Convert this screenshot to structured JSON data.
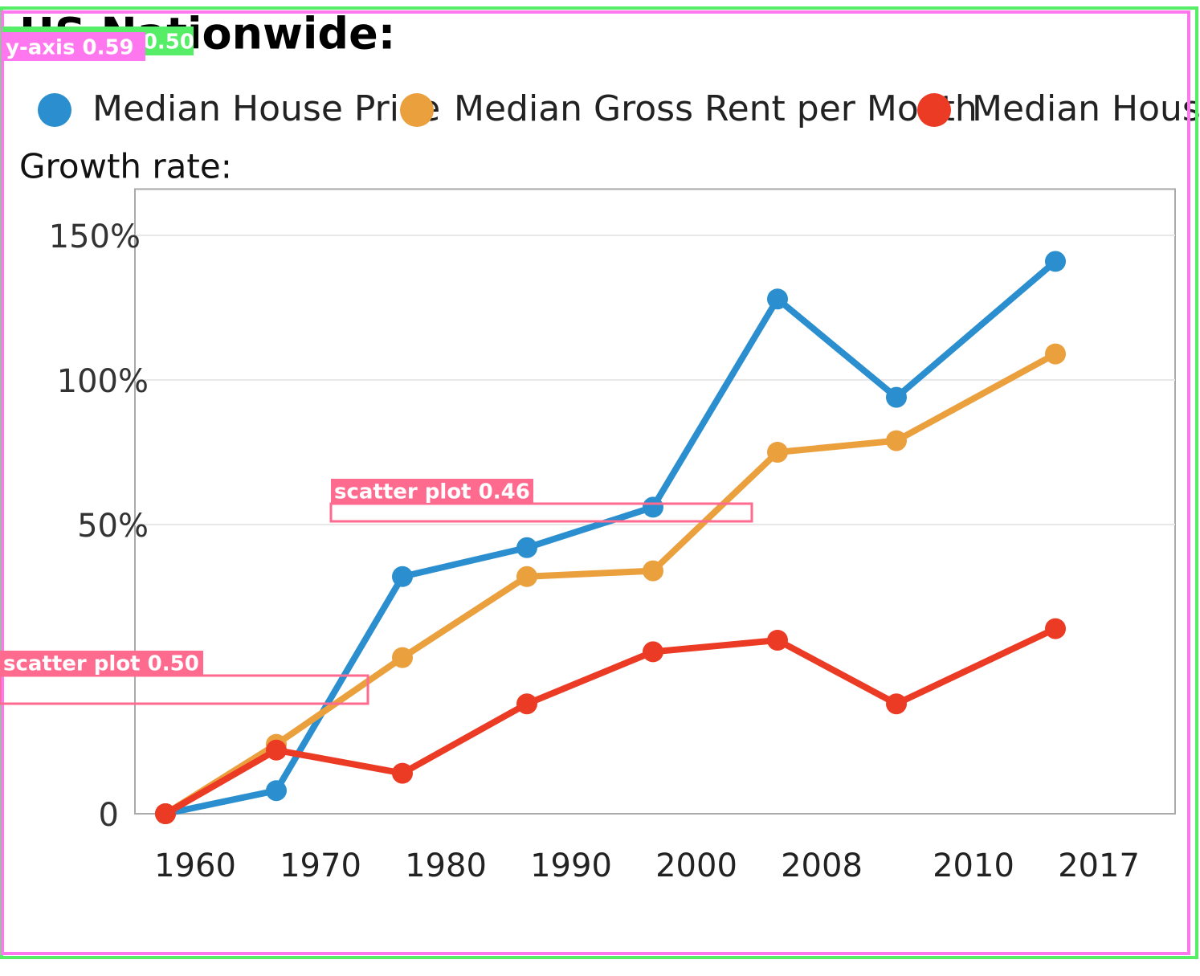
{
  "chart_data": {
    "type": "line",
    "title": "US Nationwide:",
    "y_label": "Growth rate:",
    "categories": [
      "1960",
      "1970",
      "1980",
      "1990",
      "2000",
      "2008",
      "2010",
      "2017"
    ],
    "series": [
      {
        "name": "Median House Price",
        "color": "#2b8fcf",
        "values": [
          0,
          4,
          41,
          46,
          56,
          128,
          94,
          141
        ]
      },
      {
        "name": "Median Gross Rent per Month",
        "color": "#eba03e",
        "values": [
          0,
          12,
          27,
          41,
          42,
          75,
          79,
          109
        ]
      },
      {
        "name": "Median Hous",
        "color": "#ec3b24",
        "values": [
          0,
          11,
          7,
          19,
          28,
          30,
          19,
          32
        ]
      }
    ],
    "ylim": [
      0,
      166
    ],
    "yticks": [
      0,
      {
        "value": 50,
        "label": "50%"
      },
      {
        "value": 100,
        "label": "100%"
      },
      {
        "value": 150,
        "label": "150%"
      }
    ],
    "grid": true
  },
  "detections": [
    {
      "label": "screenshot 0.50",
      "color": "#55ee66"
    },
    {
      "label": "y-axis 0.59",
      "color": "#ff77ee"
    },
    {
      "label": "scatter plot 0.46",
      "color": "#ff6b8f"
    },
    {
      "label": "scatter plot 0.50",
      "color": "#ff6b8f"
    }
  ]
}
